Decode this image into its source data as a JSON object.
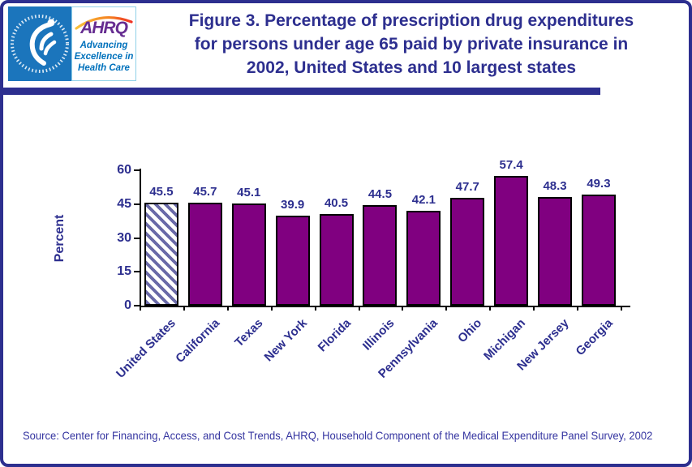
{
  "colors": {
    "navy": "#2d2f8f",
    "bar_purple": "#800080",
    "hatch_stripe": "#6a6aa8",
    "hhs_blue": "#1b75bc",
    "ahrq_purple": "#662d91",
    "tagline_blue": "#0071bc",
    "source_blue": "#3434a0"
  },
  "logo": {
    "acronym": "AHRQ",
    "tagline_lines": [
      "Advancing",
      "Excellence in",
      "Health Care"
    ]
  },
  "header": {
    "title_lines": [
      "Figure 3. Percentage of prescription drug expenditures",
      "for persons under age 65 paid by private insurance in",
      "2002, United States and 10 largest states"
    ]
  },
  "chart_data": {
    "type": "bar",
    "title": "",
    "categories": [
      "United States",
      "California",
      "Texas",
      "New York",
      "Florida",
      "Illinois",
      "Pennsylvania",
      "Ohio",
      "Michigan",
      "New Jersey",
      "Georgia"
    ],
    "values": [
      45.5,
      45.7,
      45.1,
      39.9,
      40.5,
      44.5,
      42.1,
      47.7,
      57.4,
      48.3,
      49.3
    ],
    "value_labels": [
      "45.5",
      "45.7",
      "45.1",
      "39.9",
      "40.5",
      "44.5",
      "42.1",
      "47.7",
      "57.4",
      "48.3",
      "49.3"
    ],
    "xlabel": "",
    "ylabel": "Percent",
    "ylim": [
      0,
      60
    ],
    "yticks": [
      0,
      15,
      30,
      45,
      60
    ],
    "grid": false,
    "legend": "none",
    "bar_color": "#800080",
    "bar_border_color": "#000000",
    "highlight": {
      "index": 0,
      "style": "diagonal-hatch",
      "stripe_color": "#6a6aa8",
      "background": "#ffffff"
    }
  },
  "footer": {
    "source": "Source: Center for Financing, Access, and Cost Trends, AHRQ, Household Component of the Medical Expenditure Panel Survey, 2002"
  }
}
